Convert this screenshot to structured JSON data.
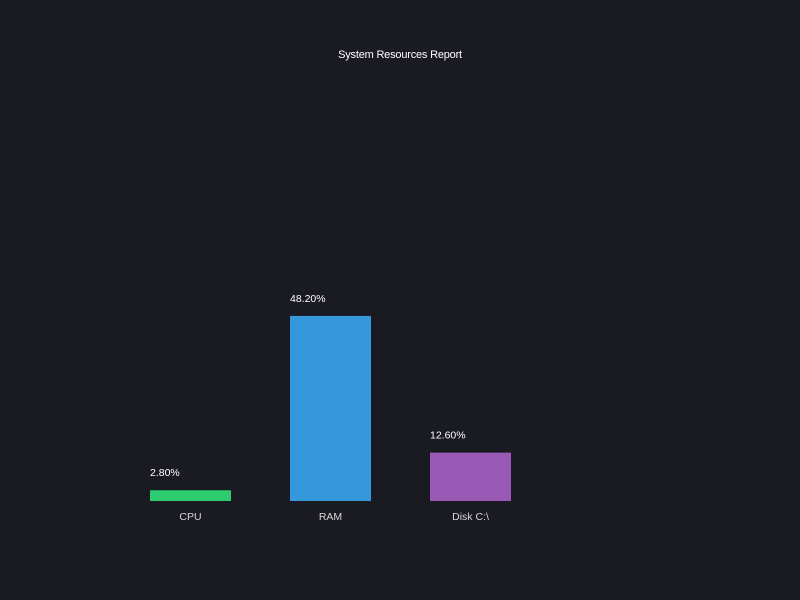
{
  "chart_data": {
    "type": "bar",
    "title": "System Resources Report",
    "xlabel": "",
    "ylabel": "",
    "categories": [
      "CPU",
      "RAM",
      "Disk C:\\"
    ],
    "values": [
      2.8,
      48.2,
      12.6
    ],
    "value_labels": [
      "2.80%",
      "48.20%",
      "12.60%"
    ],
    "bar_colors": [
      "#2ecc71",
      "#3498db",
      "#9b59b6"
    ],
    "ylim": [
      0,
      100
    ],
    "grid": false,
    "legend": "none"
  },
  "theme": {
    "background": "#1a1a22",
    "text": "#ffffff"
  }
}
